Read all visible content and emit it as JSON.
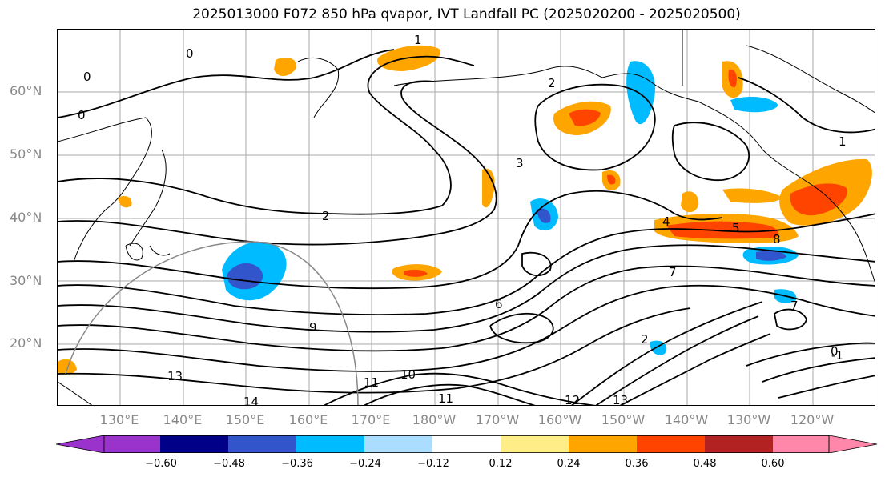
{
  "title": "2025013000 F072 850 hPa qvapor, IVT Landfall PC (2025020200 - 2025020500)",
  "lat_labels": [
    "60°N",
    "50°N",
    "40°N",
    "30°N",
    "20°N"
  ],
  "lon_labels": [
    "130°E",
    "140°E",
    "150°E",
    "160°E",
    "170°E",
    "180°W",
    "170°W",
    "160°W",
    "150°W",
    "140°W",
    "130°W",
    "120°W"
  ],
  "colorbar": {
    "ticks": [
      "−0.60",
      "−0.48",
      "−0.36",
      "−0.24",
      "−0.12",
      "0.12",
      "0.24",
      "0.36",
      "0.48",
      "0.60"
    ],
    "colors": [
      "#9933cc",
      "#000088",
      "#3355cc",
      "#00bbff",
      "#aaddff",
      "#ffffff",
      "#ffee88",
      "#ffa500",
      "#ff4400",
      "#b22222",
      "#ff88aa"
    ]
  },
  "contour_labels": [
    "0",
    "0",
    "0",
    "1",
    "2",
    "2",
    "3",
    "4",
    "5",
    "8",
    "7",
    "9",
    "10",
    "11",
    "11",
    "13",
    "14",
    "12",
    "13",
    "-1",
    "0",
    "1",
    "7",
    "6",
    "2"
  ]
}
